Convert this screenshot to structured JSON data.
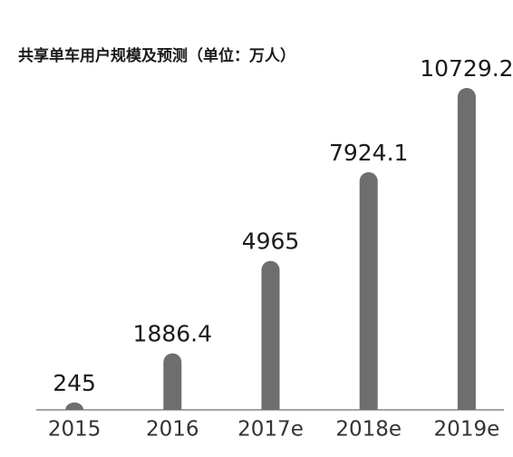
{
  "chart_data": {
    "type": "bar",
    "title": "共享单车用户规模及预测（单位：万人）",
    "categories": [
      "2015",
      "2016",
      "2017e",
      "2018e",
      "2019e"
    ],
    "values": [
      245,
      1886.4,
      4965,
      7924.1,
      10729.2
    ],
    "color": "#6e6e6e"
  }
}
